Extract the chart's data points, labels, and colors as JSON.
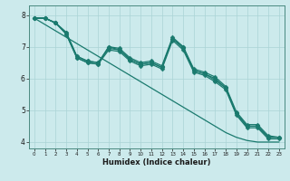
{
  "xlabel": "Humidex (Indice chaleur)",
  "bg_color": "#cceaec",
  "grid_color": "#aad4d6",
  "line_color": "#1a7a6e",
  "xlim": [
    -0.5,
    23.5
  ],
  "ylim": [
    3.8,
    8.3
  ],
  "xticks": [
    0,
    1,
    2,
    3,
    4,
    5,
    6,
    7,
    8,
    9,
    10,
    11,
    12,
    13,
    14,
    15,
    16,
    17,
    18,
    19,
    20,
    21,
    22,
    23
  ],
  "yticks": [
    4,
    5,
    6,
    7,
    8
  ],
  "series": [
    [
      7.9,
      7.9,
      7.75,
      7.45,
      6.7,
      6.55,
      6.5,
      6.95,
      6.9,
      6.6,
      6.45,
      6.5,
      6.35,
      7.25,
      7.0,
      6.25,
      6.15,
      6.0,
      5.7,
      4.9,
      4.5,
      4.5,
      4.15,
      4.15
    ],
    [
      7.9,
      7.9,
      7.75,
      7.45,
      6.7,
      6.55,
      6.5,
      7.0,
      6.95,
      6.65,
      6.5,
      6.55,
      6.4,
      7.3,
      7.0,
      6.3,
      6.2,
      6.05,
      5.75,
      4.95,
      4.55,
      4.55,
      4.2,
      4.15
    ],
    [
      7.9,
      7.9,
      7.75,
      7.4,
      6.65,
      6.5,
      6.45,
      7.0,
      6.9,
      6.6,
      6.45,
      6.5,
      6.35,
      7.25,
      6.95,
      6.25,
      6.15,
      5.95,
      5.7,
      4.9,
      4.5,
      4.5,
      4.15,
      4.15
    ],
    [
      7.9,
      7.9,
      7.75,
      7.4,
      6.65,
      6.5,
      6.45,
      6.9,
      6.85,
      6.55,
      6.4,
      6.45,
      6.3,
      7.2,
      6.9,
      6.2,
      6.1,
      5.9,
      5.65,
      4.85,
      4.45,
      4.45,
      4.1,
      4.1
    ]
  ],
  "straight_line": [
    7.9,
    7.7,
    7.5,
    7.3,
    7.1,
    6.9,
    6.7,
    6.5,
    6.3,
    6.1,
    5.9,
    5.7,
    5.5,
    5.3,
    5.1,
    4.9,
    4.7,
    4.5,
    4.3,
    4.15,
    4.05,
    4.0,
    4.0,
    4.0
  ],
  "marker_size": 2.5,
  "linewidth": 0.9
}
